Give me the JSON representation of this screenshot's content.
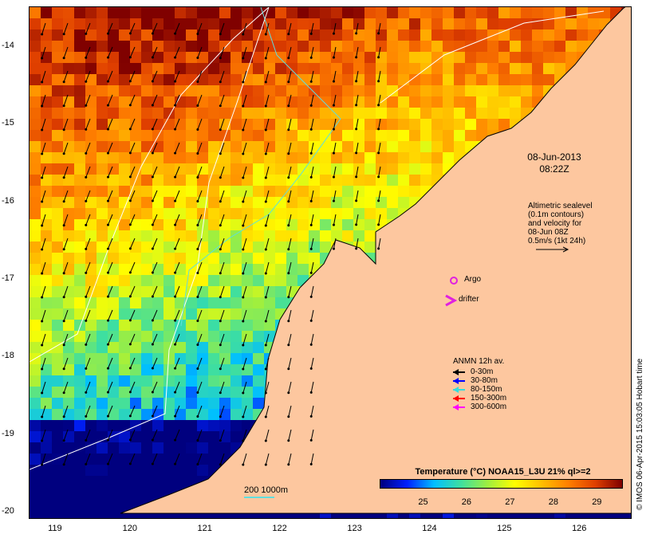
{
  "map": {
    "lat_ticks": [
      "-14",
      "-15",
      "-16",
      "-17",
      "-18",
      "-19",
      "-20"
    ],
    "lon_ticks": [
      "119",
      "120",
      "121",
      "122",
      "123",
      "124",
      "125",
      "126"
    ],
    "lat_range": [
      -20.1,
      -13.5
    ],
    "lon_range": [
      118.65,
      126.7
    ],
    "colors": {
      "land": "#fdc79f",
      "contour": "#ffffff",
      "isobath": "#5fdede"
    }
  },
  "annotations": {
    "date": "08-Jun-2013",
    "time": "08:22Z",
    "altimetry_lines": [
      "Altimetric sealevel",
      "(0.1m contours)",
      "and velocity for",
      "08-Jun 08Z",
      "0.5m/s (1kt 24h)"
    ],
    "argo_label": "Argo",
    "argo_color": "#e020e0",
    "drifter_label": "drifter",
    "drifter_color": "#e020e0"
  },
  "anmn_legend": {
    "title": "ANMN 12h av.",
    "items": [
      {
        "label": "0-30m",
        "color": "#000000"
      },
      {
        "label": "30-80m",
        "color": "#0000ff"
      },
      {
        "label": "80-150m",
        "color": "#33dddd"
      },
      {
        "label": "150-300m",
        "color": "#ff0000"
      },
      {
        "label": "300-600m",
        "color": "#ff00ff"
      }
    ]
  },
  "colorbar": {
    "title": "Temperature (°C) NOAA15_L3U 21% ql>=2",
    "ticks": [
      "25",
      "26",
      "27",
      "28",
      "29"
    ],
    "range": [
      24.0,
      29.6
    ],
    "stops": [
      "#00007f",
      "#0020ff",
      "#00bfff",
      "#3fdf9f",
      "#9fef3f",
      "#ffff00",
      "#ffbf00",
      "#ff7f00",
      "#df3f00",
      "#7f0000"
    ]
  },
  "scale": {
    "label": "200  1000m"
  },
  "credit": "© IMOS 06-Apr-2015 15:03:05 Hobart time"
}
